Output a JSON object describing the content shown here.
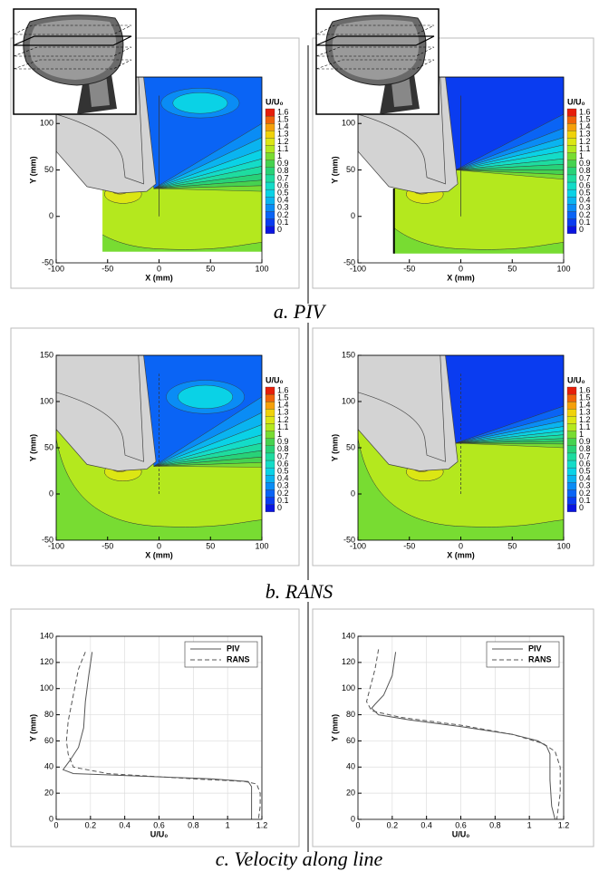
{
  "captions": [
    "a. PIV",
    "b. RANS",
    "c. Velocity along line"
  ],
  "chart_data": [
    {
      "type": "contour",
      "xlabel": "X (mm)",
      "ylabel": "Y (mm)",
      "xlim": [
        -100,
        100
      ],
      "ylim": [
        -50,
        150
      ],
      "xticks": [
        -100,
        -50,
        0,
        50,
        100
      ],
      "yticks": [
        -50,
        0,
        50,
        100
      ],
      "colorbar": {
        "title": "U/U₀",
        "levels": [
          0,
          0.1,
          0.2,
          0.3,
          0.4,
          0.5,
          0.6,
          0.7,
          0.8,
          0.9,
          1,
          1.1,
          1.2,
          1.3,
          1.4,
          1.5,
          1.6
        ],
        "colors": [
          "#0a14e0",
          "#0a3cf0",
          "#0a64f5",
          "#0a8cf5",
          "#0ab4f0",
          "#0ad2e6",
          "#14dcc8",
          "#1edca0",
          "#28d278",
          "#46d250",
          "#78dc32",
          "#b4e81e",
          "#dce614",
          "#f0d20a",
          "#f5a00a",
          "#f0640a",
          "#e61e0a"
        ]
      }
    },
    {
      "type": "contour",
      "xlabel": "X (mm)",
      "ylabel": "Y (mm)",
      "xlim": [
        -100,
        100
      ],
      "ylim": [
        -50,
        150
      ],
      "xticks": [
        -100,
        -50,
        0,
        50,
        100
      ],
      "yticks": [
        -50,
        0,
        50,
        100
      ],
      "colorbar": {
        "title": "U/U₀",
        "levels": [
          0,
          0.1,
          0.2,
          0.3,
          0.4,
          0.5,
          0.6,
          0.7,
          0.8,
          0.9,
          1,
          1.1,
          1.2,
          1.3,
          1.4,
          1.5,
          1.6
        ],
        "colors": [
          "#0a14e0",
          "#0a3cf0",
          "#0a64f5",
          "#0a8cf5",
          "#0ab4f0",
          "#0ad2e6",
          "#14dcc8",
          "#1edca0",
          "#28d278",
          "#46d250",
          "#78dc32",
          "#b4e81e",
          "#dce614",
          "#f0d20a",
          "#f5a00a",
          "#f0640a",
          "#e61e0a"
        ]
      }
    },
    {
      "type": "contour",
      "xlabel": "X (mm)",
      "ylabel": "Y (mm)",
      "xlim": [
        -100,
        100
      ],
      "ylim": [
        -50,
        150
      ],
      "xticks": [
        -100,
        -50,
        0,
        50,
        100
      ],
      "yticks": [
        -50,
        0,
        50,
        100,
        150
      ],
      "colorbar": {
        "title": "U/U₀",
        "levels": [
          0,
          0.1,
          0.2,
          0.3,
          0.4,
          0.5,
          0.6,
          0.7,
          0.8,
          0.9,
          1,
          1.1,
          1.2,
          1.3,
          1.4,
          1.5,
          1.6
        ],
        "colors": [
          "#0a14e0",
          "#0a3cf0",
          "#0a64f5",
          "#0a8cf5",
          "#0ab4f0",
          "#0ad2e6",
          "#14dcc8",
          "#1edca0",
          "#28d278",
          "#46d250",
          "#78dc32",
          "#b4e81e",
          "#dce614",
          "#f0d20a",
          "#f5a00a",
          "#f0640a",
          "#e61e0a"
        ]
      }
    },
    {
      "type": "contour",
      "xlabel": "X (mm)",
      "ylabel": "Y (mm)",
      "xlim": [
        -100,
        100
      ],
      "ylim": [
        -50,
        150
      ],
      "xticks": [
        -100,
        -50,
        0,
        50,
        100
      ],
      "yticks": [
        -50,
        0,
        50,
        100,
        150
      ],
      "colorbar": {
        "title": "U/U₀",
        "levels": [
          0,
          0.1,
          0.2,
          0.3,
          0.4,
          0.5,
          0.6,
          0.7,
          0.8,
          0.9,
          1,
          1.1,
          1.2,
          1.3,
          1.4,
          1.5,
          1.6
        ],
        "colors": [
          "#0a14e0",
          "#0a3cf0",
          "#0a64f5",
          "#0a8cf5",
          "#0ab4f0",
          "#0ad2e6",
          "#14dcc8",
          "#1edca0",
          "#28d278",
          "#46d250",
          "#78dc32",
          "#b4e81e",
          "#dce614",
          "#f0d20a",
          "#f5a00a",
          "#f0640a",
          "#e61e0a"
        ]
      }
    },
    {
      "type": "line",
      "xlabel": "U/U₀",
      "ylabel": "Y (mm)",
      "xlim": [
        0,
        1.2
      ],
      "ylim": [
        0,
        140
      ],
      "xticks": [
        0,
        0.2,
        0.4,
        0.6,
        0.8,
        1,
        1.2
      ],
      "yticks": [
        0,
        20,
        40,
        60,
        80,
        100,
        120,
        140
      ],
      "grid": true,
      "legend": "upper right",
      "series": [
        {
          "name": "PIV",
          "color": "#555555",
          "linestyle": "solid",
          "x": [
            0.21,
            0.19,
            0.17,
            0.16,
            0.13,
            0.08,
            0.04,
            0.1,
            0.5,
            0.9,
            1.12,
            1.14,
            1.14,
            1.14
          ],
          "values": [
            128,
            110,
            90,
            70,
            55,
            45,
            38,
            35,
            33,
            31,
            29,
            25,
            10,
            0
          ]
        },
        {
          "name": "RANS",
          "color": "#555555",
          "linestyle": "dashed",
          "x": [
            0.17,
            0.13,
            0.1,
            0.07,
            0.06,
            0.07,
            0.1,
            0.3,
            0.8,
            1.1,
            1.17,
            1.19,
            1.19,
            1.18
          ],
          "values": [
            128,
            115,
            95,
            75,
            60,
            50,
            40,
            35,
            31,
            29,
            27,
            20,
            10,
            0
          ]
        }
      ]
    },
    {
      "type": "line",
      "xlabel": "U/U₀",
      "ylabel": "Y (mm)",
      "xlim": [
        0,
        1.2
      ],
      "ylim": [
        0,
        140
      ],
      "xticks": [
        0,
        0.2,
        0.4,
        0.6,
        0.8,
        1,
        1.2
      ],
      "yticks": [
        0,
        20,
        40,
        60,
        80,
        100,
        120,
        140
      ],
      "grid": true,
      "legend": "upper right",
      "series": [
        {
          "name": "PIV",
          "color": "#555555",
          "linestyle": "solid",
          "x": [
            0.22,
            0.2,
            0.15,
            0.1,
            0.08,
            0.12,
            0.3,
            0.6,
            0.9,
            1.05,
            1.1,
            1.12,
            1.12,
            1.13,
            1.15
          ],
          "values": [
            128,
            110,
            95,
            88,
            85,
            80,
            76,
            71,
            65,
            60,
            56,
            50,
            30,
            10,
            0
          ]
        },
        {
          "name": "RANS",
          "color": "#555555",
          "linestyle": "dashed",
          "x": [
            0.12,
            0.1,
            0.07,
            0.05,
            0.08,
            0.25,
            0.6,
            0.9,
            1.08,
            1.15,
            1.18,
            1.18,
            1.16
          ],
          "values": [
            130,
            115,
            100,
            90,
            83,
            78,
            72,
            65,
            58,
            52,
            40,
            20,
            0
          ]
        }
      ]
    }
  ]
}
